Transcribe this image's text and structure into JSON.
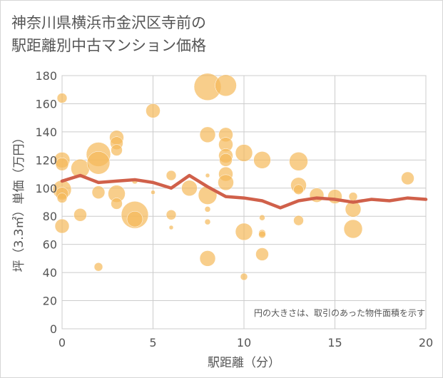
{
  "title_lines": [
    "神奈川県横浜市金沢区寺前の",
    "駅距離別中古マンション価格"
  ],
  "colors": {
    "bubble": "#f5b95a",
    "line": "#d0604a",
    "grid": "#cccccc",
    "text": "#555555"
  },
  "chart_data": {
    "type": "scatter",
    "xlabel": "駅距離（分）",
    "ylabel": "坪（3.3㎡）単価（万円）",
    "xlim": [
      0,
      20
    ],
    "ylim": [
      0,
      180
    ],
    "xticks": [
      0,
      5,
      10,
      15,
      20
    ],
    "yticks": [
      0,
      20,
      40,
      60,
      80,
      100,
      120,
      140,
      160,
      180
    ],
    "grid": true,
    "annotation": "円の大きさは、取引のあった物件面積を示す",
    "bubbles": [
      {
        "x": 0,
        "y": 164,
        "s": 7
      },
      {
        "x": 0,
        "y": 120,
        "s": 11
      },
      {
        "x": 0,
        "y": 117,
        "s": 9
      },
      {
        "x": 0,
        "y": 99,
        "s": 13
      },
      {
        "x": 0,
        "y": 96,
        "s": 9
      },
      {
        "x": 0,
        "y": 93,
        "s": 7
      },
      {
        "x": 0,
        "y": 73,
        "s": 10
      },
      {
        "x": 1,
        "y": 114,
        "s": 13
      },
      {
        "x": 1,
        "y": 81,
        "s": 9
      },
      {
        "x": 2,
        "y": 124,
        "s": 17
      },
      {
        "x": 2,
        "y": 118,
        "s": 16
      },
      {
        "x": 2,
        "y": 97,
        "s": 9
      },
      {
        "x": 2,
        "y": 44,
        "s": 6
      },
      {
        "x": 3,
        "y": 136,
        "s": 10
      },
      {
        "x": 3,
        "y": 132,
        "s": 9
      },
      {
        "x": 3,
        "y": 127,
        "s": 8
      },
      {
        "x": 3,
        "y": 96,
        "s": 12
      },
      {
        "x": 3,
        "y": 89,
        "s": 8
      },
      {
        "x": 4,
        "y": 105,
        "s": 4
      },
      {
        "x": 4,
        "y": 81,
        "s": 19
      },
      {
        "x": 4,
        "y": 78,
        "s": 11
      },
      {
        "x": 5,
        "y": 155,
        "s": 10
      },
      {
        "x": 5,
        "y": 97,
        "s": 3
      },
      {
        "x": 6,
        "y": 109,
        "s": 7
      },
      {
        "x": 6,
        "y": 81,
        "s": 7
      },
      {
        "x": 6,
        "y": 72,
        "s": 3
      },
      {
        "x": 7,
        "y": 100,
        "s": 11
      },
      {
        "x": 8,
        "y": 172,
        "s": 19
      },
      {
        "x": 8,
        "y": 138,
        "s": 11
      },
      {
        "x": 8,
        "y": 109,
        "s": 3
      },
      {
        "x": 8,
        "y": 95,
        "s": 13
      },
      {
        "x": 8,
        "y": 85,
        "s": 4
      },
      {
        "x": 8,
        "y": 76,
        "s": 4
      },
      {
        "x": 8,
        "y": 50,
        "s": 11
      },
      {
        "x": 9,
        "y": 173,
        "s": 15
      },
      {
        "x": 9,
        "y": 138,
        "s": 10
      },
      {
        "x": 9,
        "y": 131,
        "s": 10
      },
      {
        "x": 9,
        "y": 123,
        "s": 10
      },
      {
        "x": 9,
        "y": 120,
        "s": 9
      },
      {
        "x": 9,
        "y": 110,
        "s": 10
      },
      {
        "x": 9,
        "y": 104,
        "s": 11
      },
      {
        "x": 10,
        "y": 125,
        "s": 12
      },
      {
        "x": 10,
        "y": 69,
        "s": 12
      },
      {
        "x": 10,
        "y": 37,
        "s": 5
      },
      {
        "x": 11,
        "y": 120,
        "s": 12
      },
      {
        "x": 11,
        "y": 79,
        "s": 4
      },
      {
        "x": 11,
        "y": 68,
        "s": 5
      },
      {
        "x": 11,
        "y": 67,
        "s": 5
      },
      {
        "x": 11,
        "y": 53,
        "s": 9
      },
      {
        "x": 13,
        "y": 119,
        "s": 13
      },
      {
        "x": 13,
        "y": 102,
        "s": 11
      },
      {
        "x": 13,
        "y": 99,
        "s": 7
      },
      {
        "x": 13,
        "y": 77,
        "s": 7
      },
      {
        "x": 14,
        "y": 95,
        "s": 10
      },
      {
        "x": 15,
        "y": 94,
        "s": 10
      },
      {
        "x": 16,
        "y": 94,
        "s": 6
      },
      {
        "x": 16,
        "y": 85,
        "s": 11
      },
      {
        "x": 16,
        "y": 71,
        "s": 13
      },
      {
        "x": 19,
        "y": 107,
        "s": 9
      }
    ],
    "series": [
      {
        "x": [
          0,
          1,
          2,
          3,
          4,
          5,
          6,
          7,
          8,
          9,
          10,
          11,
          12,
          13,
          14,
          15,
          16,
          17,
          18,
          19,
          20
        ],
        "values": [
          105,
          109,
          104,
          105,
          106,
          104,
          100,
          109,
          101,
          94,
          93,
          91,
          86,
          91,
          93,
          92,
          90,
          92,
          91,
          93,
          92
        ]
      }
    ]
  }
}
